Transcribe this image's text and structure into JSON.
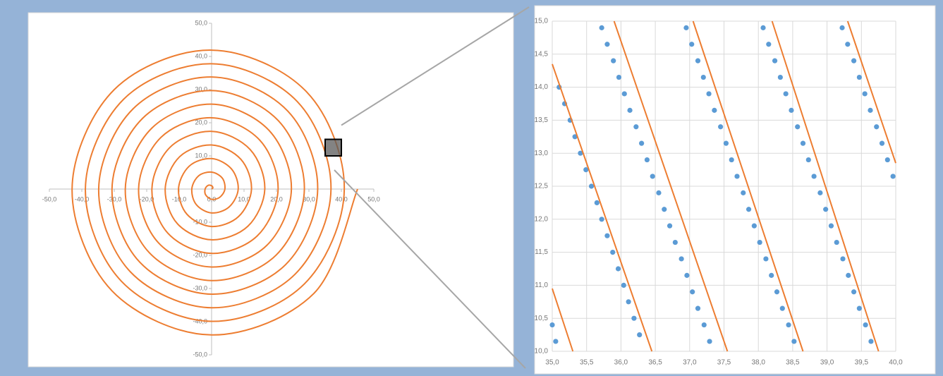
{
  "chart_data": [
    {
      "type": "line",
      "xlim": [
        -50,
        50
      ],
      "ylim": [
        -50,
        50
      ],
      "xticks": [
        {
          "value": -50,
          "label": "-50,0"
        },
        {
          "value": -40,
          "label": "-40,0"
        },
        {
          "value": -30,
          "label": "-30,0"
        },
        {
          "value": -20,
          "label": "-20,0"
        },
        {
          "value": -10,
          "label": "-10,0"
        },
        {
          "value": 0,
          "label": "0,0"
        },
        {
          "value": 10,
          "label": "10,0"
        },
        {
          "value": 20,
          "label": "20,0"
        },
        {
          "value": 30,
          "label": "30,0"
        },
        {
          "value": 40,
          "label": "40,0"
        },
        {
          "value": 50,
          "label": "50,0"
        }
      ],
      "yticks": [
        {
          "value": -50,
          "label": "-50,0"
        },
        {
          "value": -40,
          "label": "-40,0"
        },
        {
          "value": -30,
          "label": "-30,0"
        },
        {
          "value": -20,
          "label": "-20,0"
        },
        {
          "value": -10,
          "label": "-10,0"
        },
        {
          "value": 10,
          "label": "10,0"
        },
        {
          "value": 20,
          "label": "20,0"
        },
        {
          "value": 30,
          "label": "30,0"
        },
        {
          "value": 40,
          "label": "40,0"
        },
        {
          "value": 50,
          "label": "50,0"
        }
      ],
      "grid": false,
      "x": [
        0,
        0.4,
        0,
        -1.1,
        -2,
        -1.8,
        0,
        2.5,
        4.1,
        3.3,
        0,
        -4,
        -6.1,
        -4.7,
        0,
        5.4,
        8.2,
        6.1,
        0,
        -6.9,
        -10.2,
        -7.6,
        0,
        8.3,
        12.3,
        9,
        0,
        -9.8,
        -14.3,
        -10.5,
        0,
        11.2,
        16.4,
        11.9,
        0,
        -12.7,
        -18.4,
        -13.4,
        0,
        14.1,
        20.5,
        14.8,
        0,
        -15.6,
        -22.5,
        -16.3,
        0,
        17,
        24.6,
        17.7,
        0,
        -18.4,
        -26.6,
        -19.2,
        0,
        19.9,
        28.6,
        20.6,
        0,
        -21.3,
        -30.7,
        -22.1,
        0,
        22.8,
        32.7,
        23.5,
        0,
        -24.2,
        -34.8,
        -25,
        0,
        25.7,
        36.8,
        26.4,
        0,
        -27.1,
        -38.9,
        -27.8,
        0,
        28.6,
        40.9,
        29.3,
        0,
        -30,
        -43,
        -30.7,
        0,
        31.5,
        45
      ],
      "series": [
        {
          "color": "#ed7d31",
          "values": [
            0,
            0.4,
            1,
            1.1,
            0,
            -1.8,
            -3.1,
            -2.5,
            0,
            3.3,
            5.1,
            4,
            0,
            -4.7,
            -7.2,
            -5.4,
            0,
            6.1,
            9.2,
            6.9,
            0,
            -7.6,
            -11.3,
            -8.3,
            0,
            9,
            13.3,
            9.8,
            0,
            -10.5,
            -15.3,
            -11.2,
            0,
            11.9,
            17.4,
            12.7,
            0,
            -13.4,
            -19.4,
            -14.1,
            0,
            14.8,
            21.5,
            15.6,
            0,
            -16.3,
            -23.5,
            -17,
            0,
            17.7,
            25.6,
            18.4,
            0,
            -19.2,
            -27.6,
            -19.9,
            0,
            20.6,
            29.7,
            21.3,
            0,
            -22.1,
            -31.7,
            -22.8,
            0,
            23.5,
            33.8,
            24.2,
            0,
            -25,
            -35.8,
            -25.7,
            0,
            26.4,
            37.8,
            27.1,
            0,
            -27.8,
            -39.9,
            -28.6,
            0,
            29.3,
            41.9,
            30,
            0,
            -30.7,
            -44,
            -31.5,
            0
          ]
        }
      ]
    },
    {
      "type": "scatter",
      "xlim": [
        35,
        40
      ],
      "ylim": [
        10,
        15
      ],
      "xticks": [
        {
          "value": 35,
          "label": "35,0"
        },
        {
          "value": 35.5,
          "label": "35,5"
        },
        {
          "value": 36,
          "label": "36,0"
        },
        {
          "value": 36.5,
          "label": "36,5"
        },
        {
          "value": 37,
          "label": "37,0"
        },
        {
          "value": 37.5,
          "label": "37,5"
        },
        {
          "value": 38,
          "label": "38,0"
        },
        {
          "value": 38.5,
          "label": "38,5"
        },
        {
          "value": 39,
          "label": "39,0"
        },
        {
          "value": 39.5,
          "label": "39,5"
        },
        {
          "value": 40,
          "label": "40,0"
        }
      ],
      "yticks": [
        {
          "value": 10,
          "label": "10,0"
        },
        {
          "value": 10.5,
          "label": "10,5"
        },
        {
          "value": 11,
          "label": "11,0"
        },
        {
          "value": 11.5,
          "label": "11,5"
        },
        {
          "value": 12,
          "label": "12,0"
        },
        {
          "value": 12.5,
          "label": "12,5"
        },
        {
          "value": 13,
          "label": "13,0"
        },
        {
          "value": 13.5,
          "label": "13,5"
        },
        {
          "value": 14,
          "label": "14,0"
        },
        {
          "value": 14.5,
          "label": "14,5"
        },
        {
          "value": 15,
          "label": "15,0"
        }
      ],
      "grid": true,
      "series": [
        {
          "type": "scatter",
          "color": "#5b9bd5",
          "x": [
            35.0,
            35.05,
            35.1,
            35.18,
            35.26,
            35.33,
            35.41,
            35.49,
            35.57,
            35.65,
            35.72,
            35.8,
            35.88,
            35.96,
            36.04,
            36.11,
            36.19,
            36.27,
            35.72,
            35.8,
            35.89,
            35.97,
            36.05,
            36.13,
            36.22,
            36.3,
            36.38,
            36.46,
            36.55,
            36.63,
            36.71,
            36.79,
            36.88,
            36.96,
            37.04,
            37.12,
            37.21,
            37.29,
            36.95,
            37.03,
            37.12,
            37.2,
            37.28,
            37.36,
            37.45,
            37.53,
            37.61,
            37.69,
            37.78,
            37.86,
            37.94,
            38.02,
            38.11,
            38.19,
            38.27,
            38.35,
            38.44,
            38.52,
            38.07,
            38.15,
            38.24,
            38.32,
            38.4,
            38.48,
            38.57,
            38.65,
            38.73,
            38.81,
            38.9,
            38.98,
            39.06,
            39.14,
            39.23,
            39.31,
            39.39,
            39.47,
            39.56,
            39.64,
            39.22,
            39.3,
            39.39,
            39.47,
            39.55,
            39.63,
            39.72,
            39.8,
            39.88,
            39.96
          ],
          "values": [
            10.4,
            10.15,
            14.0,
            13.75,
            13.5,
            13.25,
            13.0,
            12.75,
            12.5,
            12.25,
            12.0,
            11.75,
            11.5,
            11.25,
            11.0,
            10.75,
            10.5,
            10.25,
            14.9,
            14.65,
            14.4,
            14.15,
            13.9,
            13.65,
            13.4,
            13.15,
            12.9,
            12.65,
            12.4,
            12.15,
            11.9,
            11.65,
            11.4,
            11.15,
            10.9,
            10.65,
            10.4,
            10.15,
            14.9,
            14.65,
            14.4,
            14.15,
            13.9,
            13.65,
            13.4,
            13.15,
            12.9,
            12.65,
            12.4,
            12.15,
            11.9,
            11.65,
            11.4,
            11.15,
            10.9,
            10.65,
            10.4,
            10.15,
            14.9,
            14.65,
            14.4,
            14.15,
            13.9,
            13.65,
            13.4,
            13.15,
            12.9,
            12.65,
            12.4,
            12.15,
            11.9,
            11.65,
            11.4,
            11.15,
            10.9,
            10.65,
            10.4,
            10.15,
            14.9,
            14.65,
            14.4,
            14.15,
            13.9,
            13.65,
            13.4,
            13.15,
            12.9,
            12.65
          ]
        },
        {
          "type": "line",
          "color": "#ed7d31",
          "x": [
            35.0,
            35.3,
            null,
            35.0,
            36.45,
            null,
            35.9,
            37.55,
            null,
            37.05,
            38.65,
            null,
            38.2,
            39.75,
            null,
            39.3,
            40.0
          ],
          "values": [
            10.95,
            10.0,
            null,
            14.35,
            10.0,
            null,
            15.0,
            10.0,
            null,
            15.0,
            10.0,
            null,
            15.0,
            10.0,
            null,
            15.0,
            12.85
          ]
        }
      ]
    }
  ]
}
